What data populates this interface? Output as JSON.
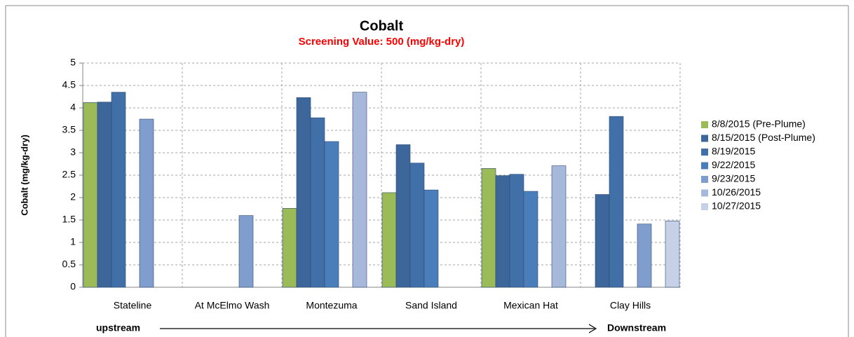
{
  "chart_data": {
    "type": "bar",
    "title": "Cobalt",
    "subtitle": "Screening Value: 500 (mg/kg-dry)",
    "y_label": "Cobalt (mg/kg-dry)",
    "annotations": [
      "upstream",
      "Downstream"
    ],
    "categories": [
      "Stateline",
      "At McElmo Wash",
      "Montezuma",
      "Sand Island",
      "Mexican Hat",
      "Clay Hills"
    ],
    "series": [
      {
        "name": "8/8/2015 (Pre-Plume)",
        "color": "#9bbb59",
        "values": [
          4.12,
          null,
          1.76,
          2.11,
          2.65,
          null
        ]
      },
      {
        "name": "8/15/2015 (Post-Plume)",
        "color": "#3d679b",
        "values": [
          4.13,
          null,
          4.23,
          3.18,
          2.49,
          2.07
        ]
      },
      {
        "name": "8/19/2015",
        "color": "#416fa8",
        "values": [
          4.35,
          null,
          3.78,
          2.77,
          2.52,
          3.81
        ]
      },
      {
        "name": "9/22/2015",
        "color": "#4a7ebb",
        "values": [
          null,
          null,
          3.25,
          2.17,
          2.14,
          null
        ]
      },
      {
        "name": "9/23/2015",
        "color": "#7f9ece",
        "values": [
          3.75,
          1.6,
          null,
          null,
          null,
          1.41
        ]
      },
      {
        "name": "10/26/2015",
        "color": "#a7b9db",
        "values": [
          null,
          null,
          4.35,
          null,
          2.71,
          null
        ]
      },
      {
        "name": "10/27/2015",
        "color": "#c6d1e8",
        "values": [
          null,
          null,
          null,
          null,
          null,
          1.48
        ]
      }
    ],
    "ylim": [
      0,
      5
    ],
    "yticks": [
      0,
      0.5,
      1,
      1.5,
      2,
      2.5,
      3,
      3.5,
      4,
      4.5,
      5
    ],
    "grid": true,
    "legend": "right"
  }
}
